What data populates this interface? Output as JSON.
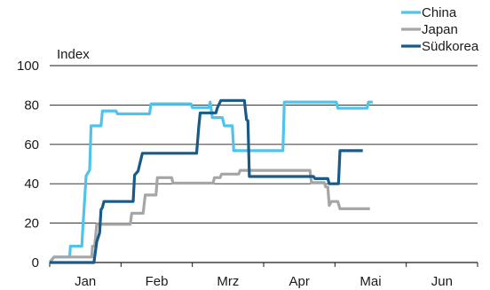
{
  "chart_data": {
    "type": "line",
    "title": "",
    "ylabel": "Index",
    "xlabel": "",
    "ylim": [
      0,
      100
    ],
    "yticks": [
      0,
      20,
      40,
      60,
      80,
      100
    ],
    "xlim": [
      0,
      6
    ],
    "month_labels": [
      "Jan",
      "Feb",
      "Mrz",
      "Apr",
      "Mai",
      "Jun"
    ],
    "grid": "horizontal",
    "legend_position": "top-right",
    "series": [
      {
        "name": "China",
        "color": "#4fc3eb",
        "points": [
          [
            0,
            0
          ],
          [
            0.06,
            2.8
          ],
          [
            0.28,
            2.8
          ],
          [
            0.29,
            8.3
          ],
          [
            0.45,
            8.3
          ],
          [
            0.46,
            15
          ],
          [
            0.51,
            44
          ],
          [
            0.56,
            47
          ],
          [
            0.58,
            69.4
          ],
          [
            0.72,
            69.4
          ],
          [
            0.74,
            77
          ],
          [
            0.93,
            77
          ],
          [
            0.95,
            75.5
          ],
          [
            1.4,
            75.5
          ],
          [
            1.42,
            80.6
          ],
          [
            1.98,
            80.6
          ],
          [
            2.0,
            78.7
          ],
          [
            2.23,
            78.7
          ],
          [
            2.25,
            81.5
          ],
          [
            2.28,
            73.6
          ],
          [
            2.42,
            73.6
          ],
          [
            2.45,
            69.4
          ],
          [
            2.56,
            69.4
          ],
          [
            2.58,
            56.8
          ],
          [
            3.27,
            56.8
          ],
          [
            3.29,
            81.5
          ],
          [
            4.02,
            81.5
          ],
          [
            4.04,
            78.4
          ],
          [
            4.45,
            78.4
          ],
          [
            4.47,
            81.5
          ],
          [
            4.53,
            81.5
          ]
        ]
      },
      {
        "name": "Japan",
        "color": "#a6a6a6",
        "points": [
          [
            0,
            0
          ],
          [
            0.06,
            2.8
          ],
          [
            0.59,
            2.8
          ],
          [
            0.6,
            8.3
          ],
          [
            0.63,
            8.3
          ],
          [
            0.66,
            19.4
          ],
          [
            1.13,
            19.4
          ],
          [
            1.15,
            25
          ],
          [
            1.31,
            25
          ],
          [
            1.34,
            34.3
          ],
          [
            1.49,
            34.3
          ],
          [
            1.51,
            43.1
          ],
          [
            1.71,
            43.1
          ],
          [
            1.73,
            40.3
          ],
          [
            2.29,
            40.3
          ],
          [
            2.31,
            43.1
          ],
          [
            2.39,
            43.1
          ],
          [
            2.41,
            44.9
          ],
          [
            2.65,
            44.9
          ],
          [
            2.67,
            46.8
          ],
          [
            3.65,
            46.8
          ],
          [
            3.67,
            40.6
          ],
          [
            3.85,
            40.6
          ],
          [
            3.87,
            38.4
          ],
          [
            3.9,
            38.4
          ],
          [
            3.92,
            29
          ],
          [
            3.95,
            31
          ],
          [
            4.04,
            31
          ],
          [
            4.07,
            27.3
          ],
          [
            4.49,
            27.3
          ]
        ]
      },
      {
        "name": "Südkorea",
        "color": "#1a5a87",
        "points": [
          [
            0,
            0
          ],
          [
            0.62,
            0
          ],
          [
            0.66,
            10.6
          ],
          [
            0.7,
            15
          ],
          [
            0.72,
            26.8
          ],
          [
            0.74,
            28
          ],
          [
            0.76,
            31
          ],
          [
            1.17,
            31
          ],
          [
            1.19,
            44.4
          ],
          [
            1.24,
            46.5
          ],
          [
            1.3,
            55.5
          ],
          [
            2.06,
            55.5
          ],
          [
            2.09,
            68.8
          ],
          [
            2.11,
            76
          ],
          [
            2.33,
            76
          ],
          [
            2.35,
            78.5
          ],
          [
            2.4,
            82.3
          ],
          [
            2.73,
            82.3
          ],
          [
            2.76,
            72.6
          ],
          [
            2.78,
            72
          ],
          [
            2.8,
            43.7
          ],
          [
            3.7,
            43.7
          ],
          [
            3.72,
            42.6
          ],
          [
            3.9,
            42.6
          ],
          [
            3.92,
            40
          ],
          [
            4.05,
            40
          ],
          [
            4.07,
            56.8
          ],
          [
            4.39,
            56.8
          ]
        ]
      }
    ]
  }
}
